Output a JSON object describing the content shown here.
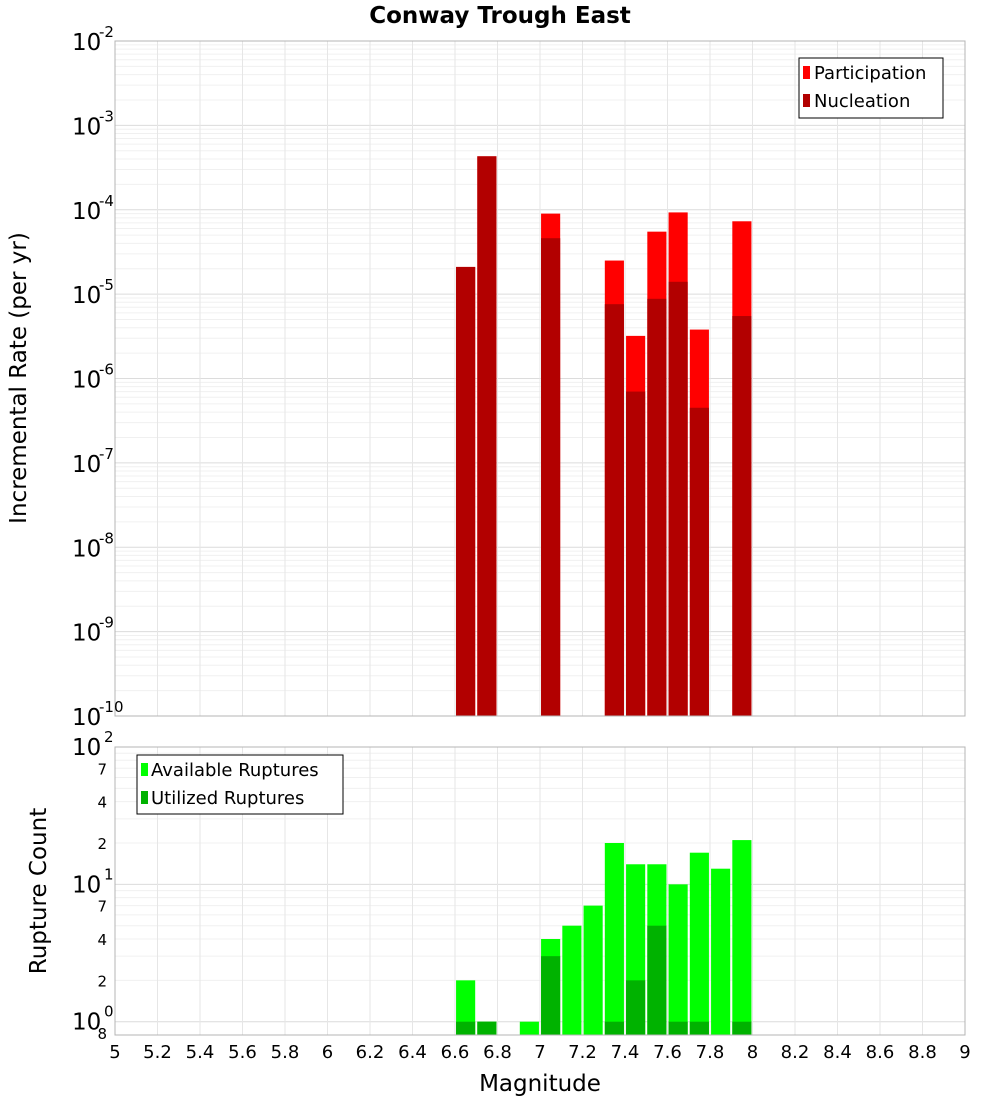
{
  "chart_data": [
    {
      "type": "bar",
      "title": "Conway Trough East",
      "xlabel": "",
      "ylabel": "Incremental Rate (per yr)",
      "yscale": "log",
      "ylim": [
        1e-10,
        0.01
      ],
      "xlim": [
        5,
        9
      ],
      "y_ticks": [
        {
          "base": "10",
          "exp": "-10"
        },
        {
          "base": "10",
          "exp": "-9"
        },
        {
          "base": "10",
          "exp": "-8"
        },
        {
          "base": "10",
          "exp": "-7"
        },
        {
          "base": "10",
          "exp": "-6"
        },
        {
          "base": "10",
          "exp": "-5"
        },
        {
          "base": "10",
          "exp": "-4"
        },
        {
          "base": "10",
          "exp": "-3"
        },
        {
          "base": "10",
          "exp": "-2"
        }
      ],
      "grid": true,
      "legend_position": "top-right",
      "series": [
        {
          "name": "Participation",
          "color": "#ff0000",
          "x": [
            6.65,
            6.75,
            7.05,
            7.35,
            7.45,
            7.55,
            7.65,
            7.75,
            7.95
          ],
          "values": [
            2.1e-05,
            0.00043,
            9e-05,
            2.5e-05,
            3.2e-06,
            5.5e-05,
            9.3e-05,
            3.8e-06,
            7.3e-05
          ]
        },
        {
          "name": "Nucleation",
          "color": "#b20000",
          "x": [
            6.65,
            6.75,
            7.05,
            7.35,
            7.45,
            7.55,
            7.65,
            7.75,
            7.95
          ],
          "values": [
            2.1e-05,
            0.00043,
            4.6e-05,
            7.6e-06,
            7e-07,
            8.8e-06,
            1.4e-05,
            4.5e-07,
            5.5e-06
          ]
        }
      ]
    },
    {
      "type": "bar",
      "title": "",
      "xlabel": "Magnitude",
      "ylabel": "Rupture Count",
      "yscale": "log",
      "ylim": [
        0.8,
        100
      ],
      "xlim": [
        5,
        9
      ],
      "x_ticks": [
        "5",
        "5.2",
        "5.4",
        "5.6",
        "5.8",
        "6",
        "6.2",
        "6.4",
        "6.6",
        "6.8",
        "7",
        "7.2",
        "7.4",
        "7.6",
        "7.8",
        "8",
        "8.2",
        "8.4",
        "8.6",
        "8.8",
        "9"
      ],
      "y_major_ticks": [
        {
          "base": "10",
          "exp": "0"
        },
        {
          "base": "10",
          "exp": "1"
        },
        {
          "base": "10",
          "exp": "2"
        }
      ],
      "y_minor_labels": [
        "8",
        "2",
        "4",
        "7",
        "2",
        "4",
        "7"
      ],
      "grid": true,
      "legend_position": "top-left",
      "series": [
        {
          "name": "Available Ruptures",
          "color": "#00ff00",
          "x": [
            6.65,
            6.75,
            6.95,
            7.05,
            7.15,
            7.25,
            7.35,
            7.45,
            7.55,
            7.65,
            7.75,
            7.85,
            7.95
          ],
          "values": [
            2,
            1,
            1,
            4,
            5,
            7,
            20,
            14,
            14,
            10,
            17,
            13,
            21
          ]
        },
        {
          "name": "Utilized Ruptures",
          "color": "#00b200",
          "x": [
            6.65,
            6.75,
            6.95,
            7.05,
            7.15,
            7.25,
            7.35,
            7.45,
            7.55,
            7.65,
            7.75,
            7.85,
            7.95
          ],
          "values": [
            1,
            1,
            0,
            3,
            0,
            0,
            1,
            2,
            5,
            1,
            1,
            0,
            1
          ]
        }
      ]
    }
  ]
}
